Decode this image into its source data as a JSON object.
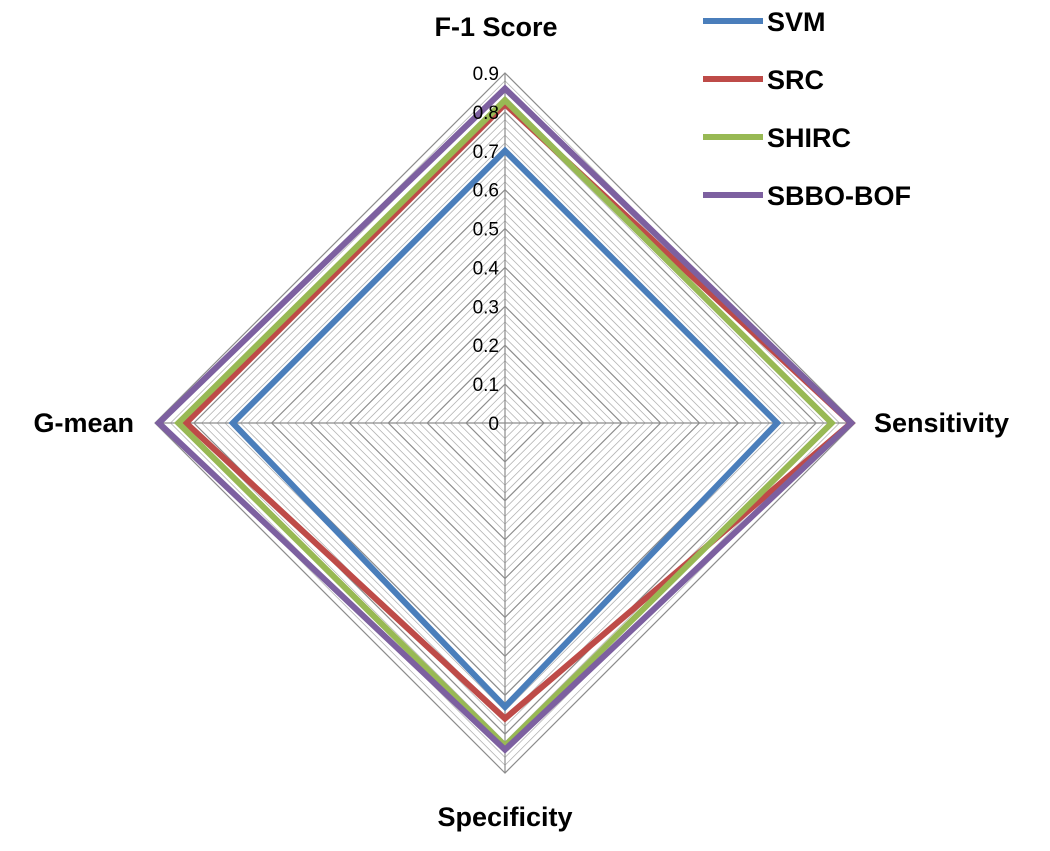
{
  "chart_data": {
    "type": "radar",
    "axes": [
      "F-1 Score",
      "Sensitivity",
      "Specificity",
      "G-mean"
    ],
    "radial_range": [
      0,
      0.9
    ],
    "radial_ticks": [
      "0",
      "0.1",
      "0.2",
      "0.3",
      "0.4",
      "0.5",
      "0.6",
      "0.7",
      "0.8",
      "0.9"
    ],
    "minor_gridline_step": 0.02,
    "grid": true,
    "legend_position": "top-right",
    "series": [
      {
        "name": "SVM",
        "color": "#4a7ebb",
        "values": [
          0.7,
          0.7,
          0.73,
          0.7
        ]
      },
      {
        "name": "SRC",
        "color": "#be4b48",
        "values": [
          0.82,
          0.89,
          0.76,
          0.82
        ]
      },
      {
        "name": "SHIRC",
        "color": "#98b954",
        "values": [
          0.83,
          0.84,
          0.83,
          0.84
        ]
      },
      {
        "name": "SBBO-BOF",
        "color": "#7d60a0",
        "values": [
          0.86,
          0.89,
          0.84,
          0.89
        ]
      }
    ]
  }
}
